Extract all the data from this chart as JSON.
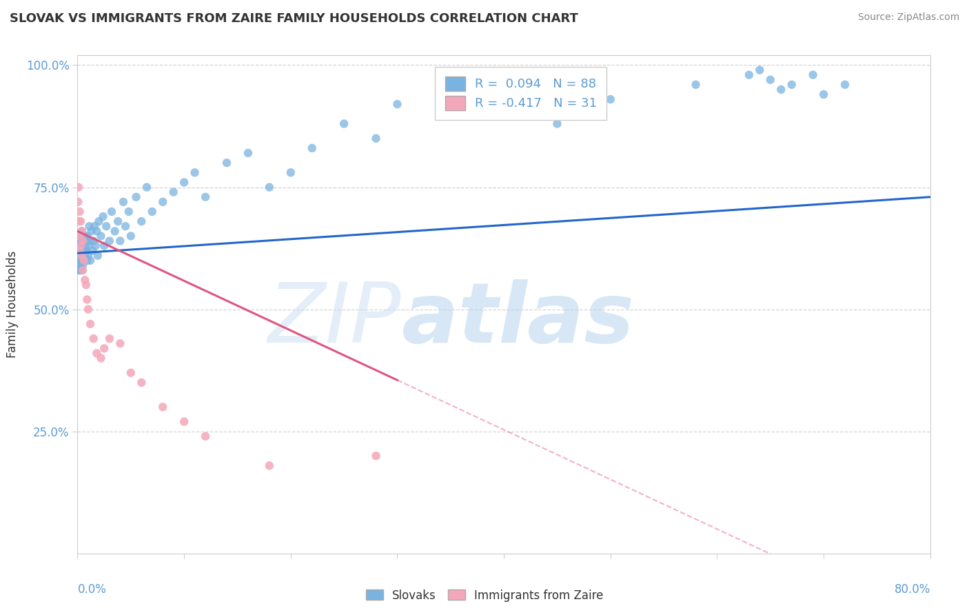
{
  "title": "SLOVAK VS IMMIGRANTS FROM ZAIRE FAMILY HOUSEHOLDS CORRELATION CHART",
  "source": "Source: ZipAtlas.com",
  "ylabel": "Family Households",
  "legend_label1": "Slovaks",
  "legend_label2": "Immigrants from Zaire",
  "R1": 0.094,
  "N1": 88,
  "R2": -0.417,
  "N2": 31,
  "blue_scatter": "#7ab3e0",
  "pink_scatter": "#f4a7b9",
  "trend_blue": "#2266cc",
  "trend_pink": "#e05580",
  "axis_label_color": "#5b9bd5",
  "text_color": "#333333",
  "grid_color": "#d0d0d0",
  "x_min": 0.0,
  "x_max": 0.8,
  "y_min": 0.0,
  "y_max": 1.0,
  "slovaks_x": [
    0.0005,
    0.001,
    0.001,
    0.001,
    0.001,
    0.0015,
    0.002,
    0.002,
    0.002,
    0.002,
    0.002,
    0.003,
    0.003,
    0.003,
    0.003,
    0.003,
    0.004,
    0.004,
    0.004,
    0.004,
    0.005,
    0.005,
    0.005,
    0.006,
    0.006,
    0.006,
    0.007,
    0.007,
    0.008,
    0.008,
    0.009,
    0.009,
    0.01,
    0.01,
    0.011,
    0.012,
    0.012,
    0.013,
    0.014,
    0.015,
    0.016,
    0.017,
    0.018,
    0.019,
    0.02,
    0.022,
    0.024,
    0.025,
    0.027,
    0.03,
    0.032,
    0.035,
    0.038,
    0.04,
    0.043,
    0.045,
    0.048,
    0.05,
    0.055,
    0.06,
    0.065,
    0.07,
    0.08,
    0.09,
    0.1,
    0.11,
    0.12,
    0.14,
    0.16,
    0.18,
    0.2,
    0.22,
    0.25,
    0.28,
    0.3,
    0.35,
    0.4,
    0.45,
    0.5,
    0.58,
    0.63,
    0.64,
    0.65,
    0.66,
    0.67,
    0.69,
    0.7,
    0.72
  ],
  "slovaks_y": [
    0.62,
    0.6,
    0.63,
    0.58,
    0.61,
    0.59,
    0.62,
    0.64,
    0.6,
    0.58,
    0.63,
    0.61,
    0.65,
    0.59,
    0.62,
    0.64,
    0.6,
    0.63,
    0.66,
    0.58,
    0.61,
    0.64,
    0.59,
    0.62,
    0.65,
    0.6,
    0.63,
    0.61,
    0.64,
    0.62,
    0.6,
    0.65,
    0.63,
    0.61,
    0.67,
    0.64,
    0.6,
    0.66,
    0.62,
    0.64,
    0.67,
    0.63,
    0.66,
    0.61,
    0.68,
    0.65,
    0.69,
    0.63,
    0.67,
    0.64,
    0.7,
    0.66,
    0.68,
    0.64,
    0.72,
    0.67,
    0.7,
    0.65,
    0.73,
    0.68,
    0.75,
    0.7,
    0.72,
    0.74,
    0.76,
    0.78,
    0.73,
    0.8,
    0.82,
    0.75,
    0.78,
    0.83,
    0.88,
    0.85,
    0.92,
    0.95,
    0.9,
    0.88,
    0.93,
    0.96,
    0.98,
    0.99,
    0.97,
    0.95,
    0.96,
    0.98,
    0.94,
    0.96
  ],
  "zaire_x": [
    0.0005,
    0.001,
    0.001,
    0.002,
    0.002,
    0.002,
    0.003,
    0.003,
    0.004,
    0.004,
    0.005,
    0.005,
    0.006,
    0.007,
    0.008,
    0.009,
    0.01,
    0.012,
    0.015,
    0.018,
    0.022,
    0.025,
    0.03,
    0.04,
    0.05,
    0.06,
    0.08,
    0.1,
    0.12,
    0.18,
    0.28
  ],
  "zaire_y": [
    0.72,
    0.68,
    0.75,
    0.65,
    0.7,
    0.62,
    0.68,
    0.63,
    0.66,
    0.61,
    0.64,
    0.58,
    0.6,
    0.56,
    0.55,
    0.52,
    0.5,
    0.47,
    0.44,
    0.41,
    0.4,
    0.42,
    0.44,
    0.43,
    0.37,
    0.35,
    0.3,
    0.27,
    0.24,
    0.18,
    0.2
  ],
  "trend_blue_start_y": 0.615,
  "trend_blue_end_y": 0.73,
  "trend_pink_start_y": 0.66,
  "trend_pink_end_y": 0.355
}
